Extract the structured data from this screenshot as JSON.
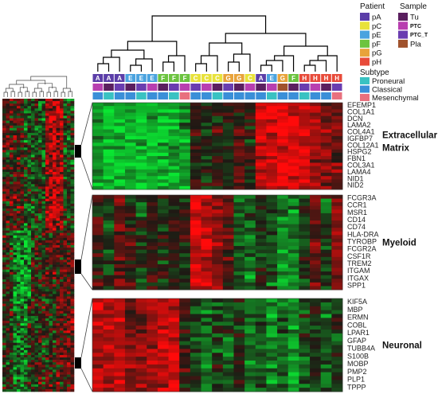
{
  "chart_data": {
    "type": "heatmap",
    "legend": {
      "patient_title": "Patient",
      "patient_items": [
        {
          "label": "pA",
          "color": "#5b3ea8"
        },
        {
          "label": "pC",
          "color": "#e8e23a"
        },
        {
          "label": "pE",
          "color": "#4aa3df"
        },
        {
          "label": "pF",
          "color": "#6cc43f"
        },
        {
          "label": "pG",
          "color": "#e8a33a"
        },
        {
          "label": "pH",
          "color": "#e84b3a"
        }
      ],
      "sample_title": "Sample",
      "sample_items": [
        {
          "label": "Tu",
          "color": "#5b1f5f"
        },
        {
          "label": "PTC",
          "color": "#b83fb0"
        },
        {
          "label": "PTC_T",
          "color": "#6a3db0"
        },
        {
          "label": "Pla",
          "color": "#a0522d"
        }
      ],
      "subtype_title": "Subtype",
      "subtype_items": [
        {
          "label": "Proneural",
          "color": "#39c2c2"
        },
        {
          "label": "Classical",
          "color": "#3a8fd8"
        },
        {
          "label": "Mesenchymal",
          "color": "#e8707e"
        }
      ]
    },
    "columns": {
      "patient_letters": [
        "A",
        "A",
        "A",
        "E",
        "E",
        "E",
        "F",
        "F",
        "F",
        "C",
        "C",
        "C",
        "G",
        "G",
        "C",
        "A",
        "E",
        "G",
        "F",
        "H",
        "H",
        "H",
        "H"
      ],
      "patient_colors": [
        "#5b3ea8",
        "#5b3ea8",
        "#5b3ea8",
        "#4aa3df",
        "#4aa3df",
        "#4aa3df",
        "#6cc43f",
        "#6cc43f",
        "#6cc43f",
        "#e8e23a",
        "#e8e23a",
        "#e8e23a",
        "#e8a33a",
        "#e8a33a",
        "#e8e23a",
        "#5b3ea8",
        "#4aa3df",
        "#e8a33a",
        "#6cc43f",
        "#e84b3a",
        "#e84b3a",
        "#e84b3a",
        "#e84b3a"
      ],
      "sample_colors": [
        "#b83fb0",
        "#5b1f5f",
        "#6a3db0",
        "#5b1f5f",
        "#6a3db0",
        "#b83fb0",
        "#5b1f5f",
        "#6a3db0",
        "#b83fb0",
        "#6a3db0",
        "#b83fb0",
        "#5b1f5f",
        "#6a3db0",
        "#5b1f5f",
        "#b83fb0",
        "#5b1f5f",
        "#b83fb0",
        "#a0522d",
        "#5b1f5f",
        "#6a3db0",
        "#b83fb0",
        "#5b1f5f",
        "#6a3db0"
      ],
      "subtype_colors": [
        "#3a8fd8",
        "#39c2c2",
        "#3a8fd8",
        "#3a8fd8",
        "#39c2c2",
        "#3a8fd8",
        "#3a8fd8",
        "#39c2c2",
        "#e8707e",
        "#3a8fd8",
        "#3a8fd8",
        "#39c2c2",
        "#3a8fd8",
        "#3a8fd8",
        "#3a8fd8",
        "#3a8fd8",
        "#39c2c2",
        "#3a8fd8",
        "#3a8fd8",
        "#39c2c2",
        "#3a8fd8",
        "#3a8fd8",
        "#e8707e"
      ]
    },
    "blocks": [
      {
        "label_line1": "Extracellular",
        "label_line2": "Matrix",
        "genes": [
          "EFEMP1",
          "COL1A1",
          "DCN",
          "LAMA2",
          "COL4A1",
          "IGFBP7",
          "COL12A1",
          "HSPG2",
          "FBN1",
          "COL3A1",
          "LAMA4",
          "NID1",
          "NID2"
        ],
        "column_values": [
          -1.4,
          -1.6,
          -1.5,
          -1.4,
          -1.6,
          -1.5,
          -1.5,
          -1.4,
          -1.2,
          0.1,
          -0.2,
          0.2,
          -0.1,
          0.3,
          0.0,
          1.6,
          1.7,
          1.8,
          1.7,
          1.5,
          1.2,
          0.9,
          0.6
        ]
      },
      {
        "label_line1": "Myeloid",
        "label_line2": "",
        "genes": [
          "FCGR3A",
          "CCR1",
          "MSR1",
          "CD14",
          "CD74",
          "HLA-DRA",
          "TYROBP",
          "FCGR2A",
          "CSF1R",
          "TREM2",
          "ITGAM",
          "ITGAX",
          "SPP1"
        ],
        "column_values": [
          0.3,
          -0.4,
          0.6,
          0.1,
          -0.3,
          0.2,
          -0.2,
          0.0,
          -0.1,
          1.6,
          1.4,
          0.9,
          0.4,
          -0.5,
          -0.8,
          -0.3,
          -0.6,
          -1.1,
          -0.9,
          -0.2,
          0.5,
          -0.4,
          0.8
        ]
      },
      {
        "label_line1": "Neuronal",
        "label_line2": "",
        "genes": [
          "KIF5A",
          "MBP",
          "ERMN",
          "COBL",
          "LPAR1",
          "GFAP",
          "TUBB4A",
          "S100B",
          "MOBP",
          "PMP2",
          "PLP1",
          "TPPP"
        ],
        "column_values": [
          1.3,
          1.2,
          1.4,
          0.7,
          1.0,
          1.2,
          1.5,
          1.6,
          0.3,
          -0.4,
          -0.9,
          -0.3,
          -0.6,
          -0.1,
          -0.8,
          -0.5,
          -1.1,
          -0.7,
          -1.2,
          -0.4,
          -0.2,
          -0.6,
          -0.3
        ]
      }
    ],
    "overview": {
      "rows": 120,
      "cols": 20
    }
  }
}
